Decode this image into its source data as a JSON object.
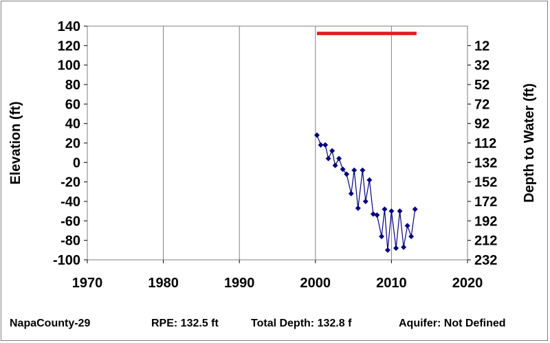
{
  "chart_data": {
    "type": "line",
    "xlim": [
      1970,
      2020
    ],
    "ylim_left": [
      -100,
      140
    ],
    "ylim_right": [
      232,
      -8
    ],
    "x_ticks": [
      1970,
      1980,
      1990,
      2000,
      2010,
      2020
    ],
    "y_left_ticks": [
      140,
      120,
      100,
      80,
      60,
      40,
      20,
      0,
      -20,
      -40,
      -60,
      -80,
      -100
    ],
    "y_right_ticks": [
      12,
      32,
      52,
      72,
      92,
      112,
      132,
      152,
      172,
      192,
      212,
      232
    ],
    "ylabel_left": "Elevation (ft)",
    "ylabel_right": "Depth to Water (ft)",
    "grid": "vertical",
    "reference_line": {
      "y": 132.5,
      "x_start": 2000.2,
      "x_end": 2013.3,
      "color": "#e02020"
    },
    "series": [
      {
        "color": "#000080",
        "x": [
          2000.2,
          2000.7,
          2001.3,
          2001.7,
          2002.2,
          2002.6,
          2003.1,
          2003.6,
          2004.1,
          2004.7,
          2005.1,
          2005.6,
          2006.2,
          2006.6,
          2007.1,
          2007.6,
          2008.1,
          2008.7,
          2009.1,
          2009.5,
          2010.0,
          2010.6,
          2011.1,
          2011.6,
          2012.1,
          2012.6,
          2013.1
        ],
        "y": [
          28,
          18,
          18,
          4,
          12,
          -3,
          4,
          -7,
          -12,
          -32,
          -8,
          -47,
          -8,
          -40,
          -18,
          -53,
          -54,
          -76,
          -48,
          -90,
          -50,
          -88,
          -50,
          -87,
          -65,
          -76,
          -48
        ]
      }
    ]
  },
  "footer": {
    "well_name": "NapaCounty-29",
    "rpe": "RPE: 132.5 ft",
    "total_depth": "Total Depth: 132.8 f",
    "aquifer": "Aquifer: Not Defined"
  },
  "colors": {
    "plot_border": "#7f7f7f",
    "grid": "#808080",
    "series": "#000080",
    "reference": "#e02020"
  }
}
